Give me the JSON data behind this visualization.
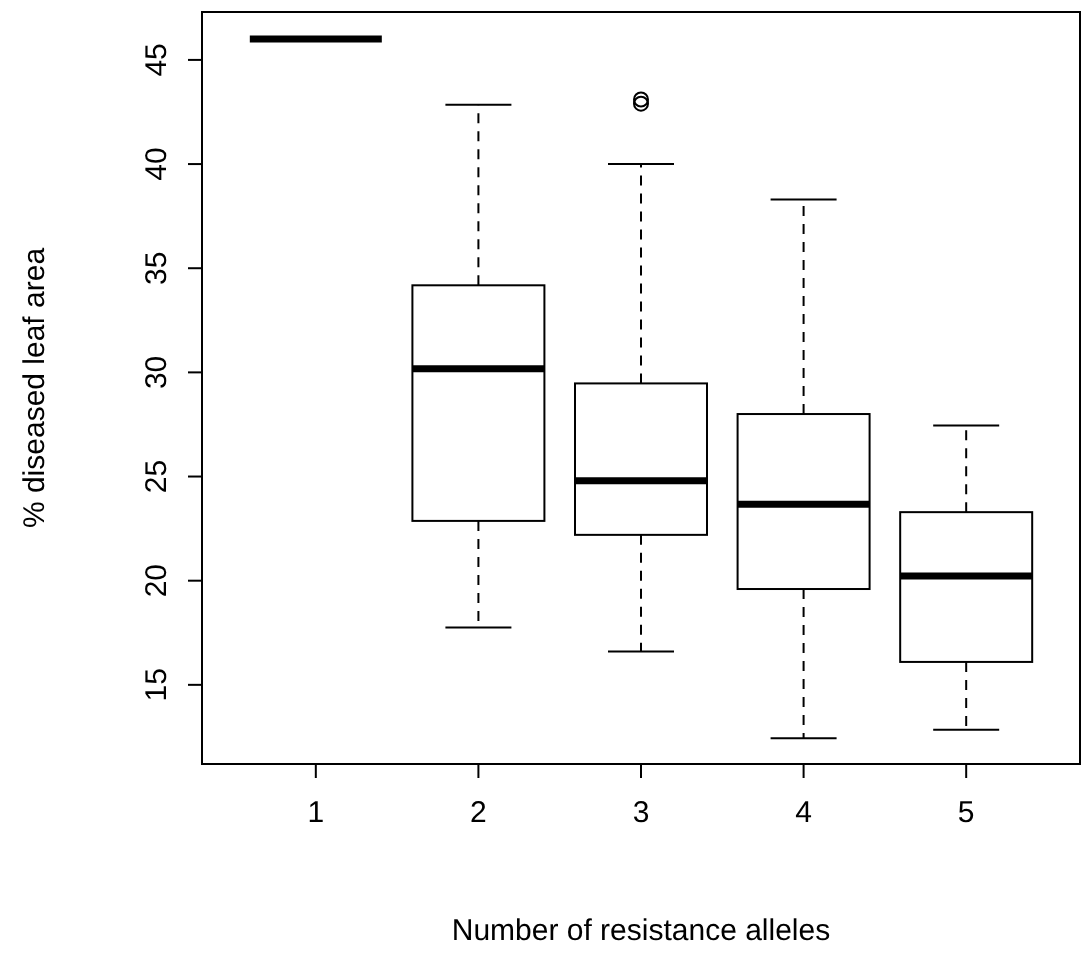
{
  "chart_data": {
    "type": "box",
    "xlabel": "Number of resistance alleles",
    "ylabel": "% diseased leaf area",
    "categories": [
      "1",
      "2",
      "3",
      "4",
      "5"
    ],
    "boxes": [
      {
        "low": 46,
        "q1": 46,
        "median": 46,
        "q3": 46,
        "high": 46
      },
      {
        "low": 17.75,
        "q1": 22.87,
        "median": 30.17,
        "q3": 34.18,
        "high": 42.85
      },
      {
        "low": 16.6,
        "q1": 22.2,
        "median": 24.8,
        "q3": 29.47,
        "high": 40,
        "outliers": [
          43.1,
          42.9
        ]
      },
      {
        "low": 12.44,
        "q1": 19.6,
        "median": 23.67,
        "q3": 28,
        "high": 38.3
      },
      {
        "low": 12.85,
        "q1": 16.1,
        "median": 20.22,
        "q3": 23.29,
        "high": 27.45
      }
    ],
    "ylim": [
      11.2,
      47.3
    ],
    "yticks": [
      15,
      20,
      25,
      30,
      35,
      40,
      45
    ],
    "grid": false,
    "marker": "circle",
    "line_style": "dashed"
  }
}
